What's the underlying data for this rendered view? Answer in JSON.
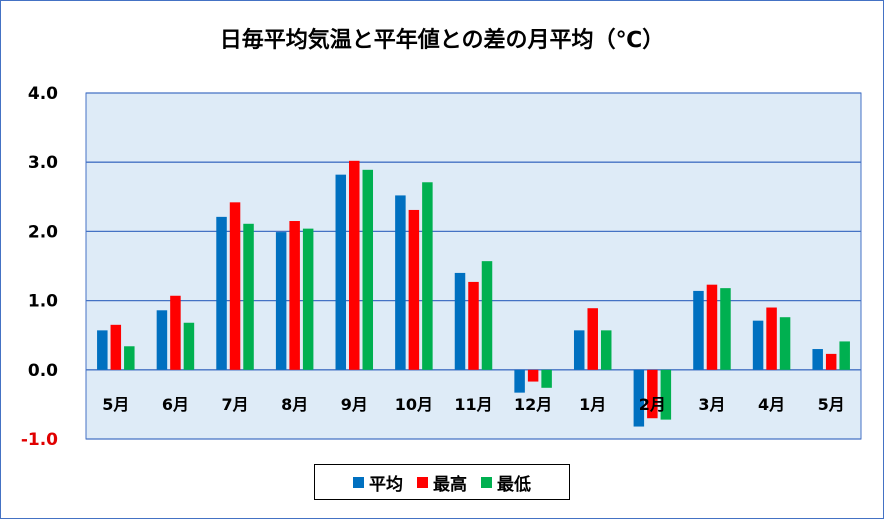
{
  "chart_data": {
    "type": "bar",
    "title": "日毎平均気温と平年値との差の月平均（℃）",
    "categories": [
      "5月",
      "6月",
      "7月",
      "8月",
      "9月",
      "10月",
      "11月",
      "12月",
      "1月",
      "2月",
      "3月",
      "4月",
      "5月"
    ],
    "series": [
      {
        "name": "平均",
        "color": "#0070C0",
        "values": [
          0.57,
          0.86,
          2.21,
          1.99,
          2.82,
          2.52,
          1.4,
          -0.33,
          0.57,
          -0.82,
          1.14,
          0.71,
          0.3
        ]
      },
      {
        "name": "最高",
        "color": "#FF0000",
        "values": [
          0.65,
          1.07,
          2.42,
          2.15,
          3.02,
          2.31,
          1.27,
          -0.17,
          0.89,
          -0.7,
          1.23,
          0.9,
          0.23
        ]
      },
      {
        "name": "最低",
        "color": "#00B050",
        "values": [
          0.34,
          0.68,
          2.11,
          2.04,
          2.89,
          2.71,
          1.57,
          -0.26,
          0.57,
          -0.72,
          1.18,
          0.76,
          0.41
        ]
      }
    ],
    "ylim": [
      -1.0,
      4.0
    ],
    "yticks": [
      "4.0",
      "3.0",
      "2.0",
      "1.0",
      "0.0",
      "-1.0"
    ],
    "ytick_values": [
      4,
      3,
      2,
      1,
      0,
      -1
    ],
    "grid": true,
    "legend_position": "bottom"
  }
}
